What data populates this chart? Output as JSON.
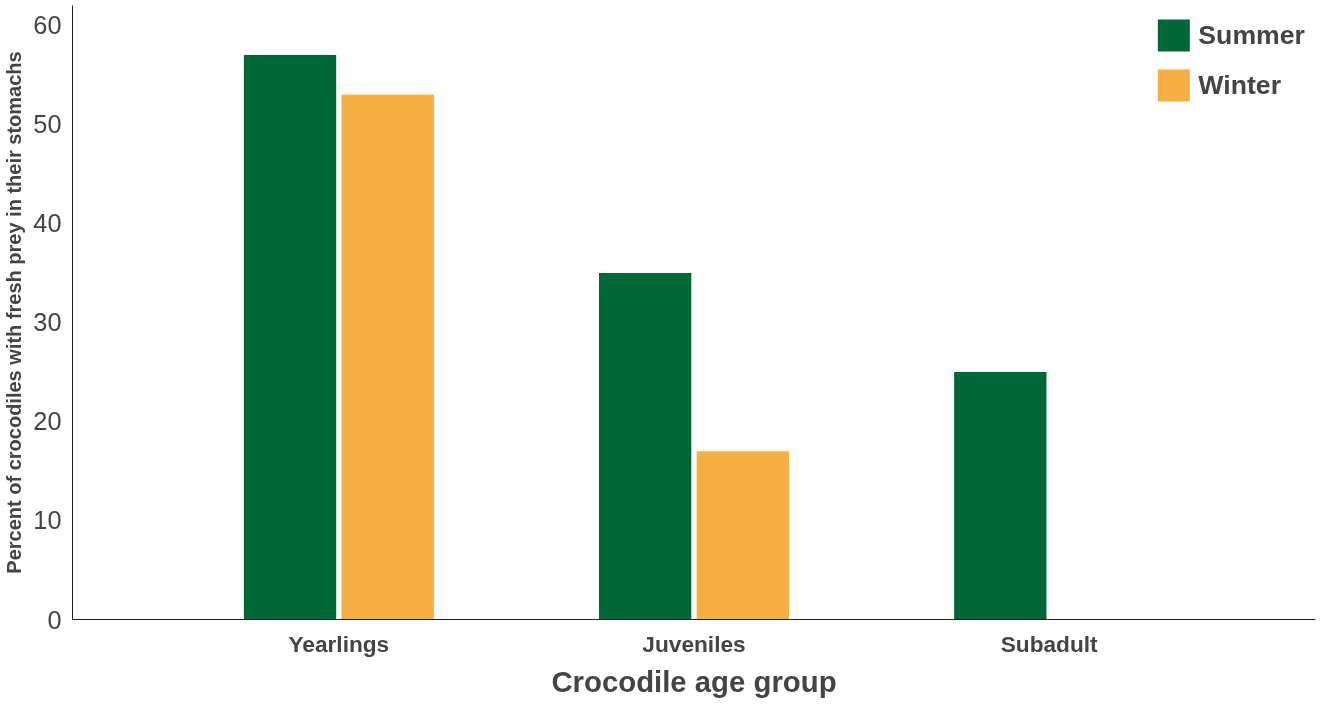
{
  "chart_data": {
    "type": "bar",
    "xlabel": "Crocodile age group",
    "ylabel": "Percent of crocodiles with fresh prey in their stomachs",
    "categories": [
      "Yearlings",
      "Juveniles",
      "Subadult"
    ],
    "series": [
      {
        "name": "Summer",
        "color": "#006837",
        "values": [
          57,
          35,
          25
        ]
      },
      {
        "name": "Winter",
        "color": "#f7af41",
        "values": [
          53,
          17,
          null
        ]
      }
    ],
    "ylim": [
      0,
      62
    ],
    "yticks": [
      0,
      10,
      20,
      30,
      40,
      50,
      60
    ],
    "grid": false,
    "legend": "top right"
  }
}
